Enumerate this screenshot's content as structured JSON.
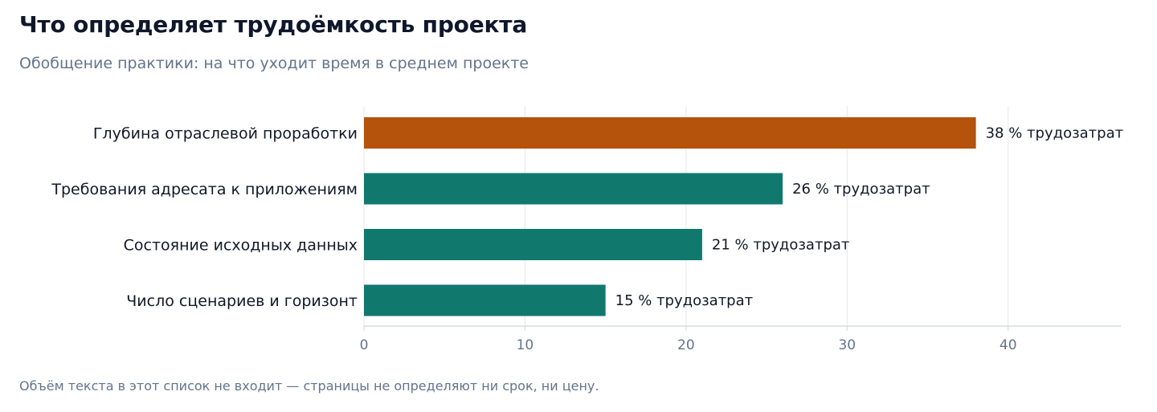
{
  "title": "Что определяет трудоёмкость проекта",
  "subtitle": "Обобщение практики: на что уходит время в среднем проекте",
  "footnote": "Объём текста в этот список не входит — страницы не определяют ни срок, ни цену.",
  "colors": {
    "highlight": "#b5520b",
    "bar": "#11786e",
    "grid": "#e5e7eb",
    "axis": "#cbd5e1"
  },
  "chart_data": {
    "type": "bar",
    "orientation": "horizontal",
    "categories": [
      "Глубина отраслевой проработки",
      "Требования адресата к приложениям",
      "Состояние исходных данных",
      "Число сценариев и горизонт"
    ],
    "values": [
      38,
      26,
      21,
      15
    ],
    "value_labels": [
      "38 % трудозатрат",
      "26 % трудозатрат",
      "21 % трудозатрат",
      "15 % трудозатрат"
    ],
    "highlight_index": 0,
    "xlim": [
      0,
      47
    ],
    "xticks": [
      0,
      10,
      20,
      30,
      40
    ],
    "grid": true,
    "xlabel": "",
    "ylabel": ""
  }
}
